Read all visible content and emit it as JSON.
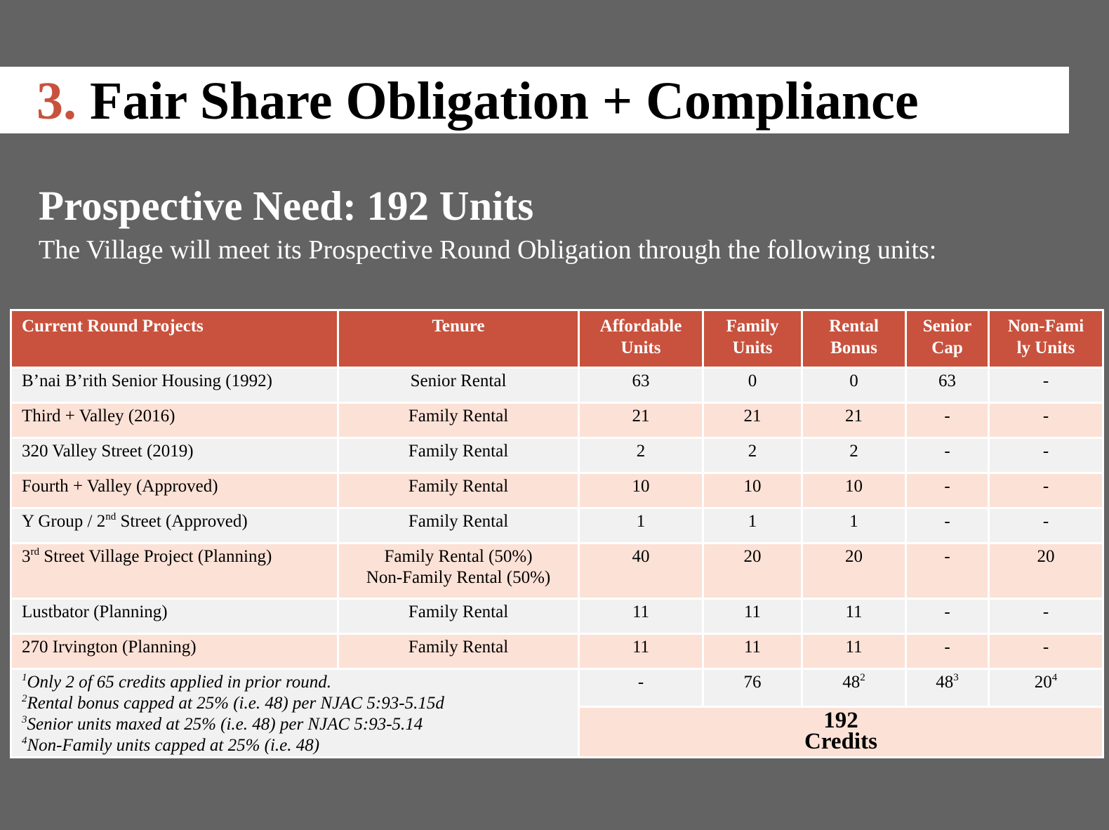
{
  "title": {
    "number": "3.",
    "text": "Fair Share Obligation + Compliance"
  },
  "heading": "Prospective Need: 192 Units",
  "subheading": "The Village will meet its Prospective Round Obligation through the following units:",
  "table": {
    "headers": [
      "Current Round Projects",
      "Tenure",
      "Affordable Units",
      "Family Units",
      "Rental Bonus",
      "Senior Cap",
      "Non-Family Units"
    ],
    "header_display": {
      "affordable": [
        "Affordable",
        "Units"
      ],
      "family": [
        "Family",
        "Units"
      ],
      "rental": [
        "Rental",
        "Bonus"
      ],
      "senior": [
        "Senior",
        "Cap"
      ],
      "nonfamily": [
        "Non-Fami",
        "ly Units"
      ]
    },
    "rows": [
      {
        "project": "B’nai B’rith Senior Housing (1992)",
        "tenure": "Senior Rental",
        "affordable": "63",
        "family": "0",
        "rental": "0",
        "senior": "63",
        "nonfamily": "-"
      },
      {
        "project": "Third + Valley (2016)",
        "tenure": "Family Rental",
        "affordable": "21",
        "family": "21",
        "rental": "21",
        "senior": "-",
        "nonfamily": "-"
      },
      {
        "project": "320 Valley Street (2019)",
        "tenure": "Family Rental",
        "affordable": "2",
        "family": "2",
        "rental": "2",
        "senior": "-",
        "nonfamily": "-"
      },
      {
        "project": "Fourth + Valley (Approved)",
        "tenure": "Family Rental",
        "affordable": "10",
        "family": "10",
        "rental": "10",
        "senior": "-",
        "nonfamily": "-"
      },
      {
        "project_pre": "Y Group / 2",
        "project_sup": "nd",
        "project_post": " Street (Approved)",
        "tenure": "Family Rental",
        "affordable": "1",
        "family": "1",
        "rental": "1",
        "senior": "-",
        "nonfamily": "-"
      },
      {
        "project_pre": "3",
        "project_sup": "rd",
        "project_post": " Street Village Project (Planning)",
        "tenure_line1": "Family Rental (50%)",
        "tenure_line2": "Non-Family Rental (50%)",
        "affordable": "40",
        "family": "20",
        "rental": "20",
        "senior": "-",
        "nonfamily": "20"
      },
      {
        "project": "Lustbator (Planning)",
        "tenure": "Family Rental",
        "affordable": "11",
        "family": "11",
        "rental": "11",
        "senior": "-",
        "nonfamily": "-"
      },
      {
        "project": "270 Irvington (Planning)",
        "tenure": "Family Rental",
        "affordable": "11",
        "family": "11",
        "rental": "11",
        "senior": "-",
        "nonfamily": "-"
      }
    ],
    "footnotes": [
      {
        "mark": "1",
        "text": "Only 2 of 65 credits applied in prior round."
      },
      {
        "mark": "2",
        "text": "Rental bonus capped at 25% (i.e. 48) per NJAC 5:93-5.15d"
      },
      {
        "mark": "3",
        "text": "Senior units maxed at 25% (i.e. 48) per NJAC 5:93-5.14"
      },
      {
        "mark": "4",
        "text": "Non-Family units capped at 25% (i.e. 48)"
      }
    ],
    "totals": {
      "affordable": "-",
      "family": "76",
      "rental": "48",
      "rental_sup": "2",
      "senior": "48",
      "senior_sup": "3",
      "nonfamily": "20",
      "nonfamily_sup": "4"
    },
    "credits": {
      "value": "192",
      "label": "Credits"
    }
  }
}
